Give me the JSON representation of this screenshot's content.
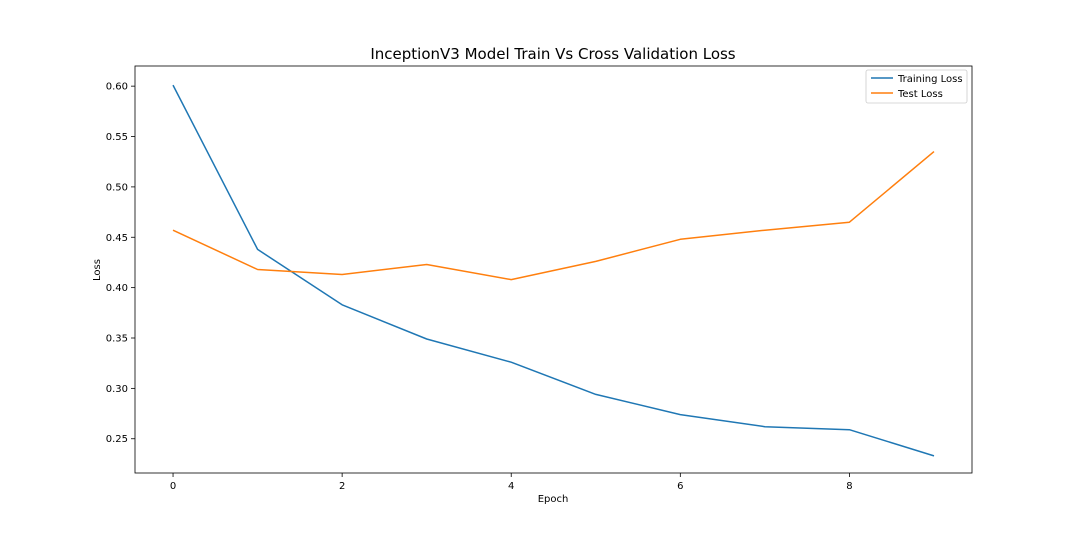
{
  "chart_data": {
    "type": "line",
    "title": "InceptionV3 Model Train Vs Cross Validation Loss",
    "xlabel": "Epoch",
    "ylabel": "Loss",
    "x": [
      0,
      1,
      2,
      3,
      4,
      5,
      6,
      7,
      8,
      9
    ],
    "xlim": [
      -0.45,
      9.45
    ],
    "ylim": [
      0.216,
      0.62
    ],
    "xticks": [
      0,
      2,
      4,
      6,
      8
    ],
    "yticks": [
      0.25,
      0.3,
      0.35,
      0.4,
      0.45,
      0.5,
      0.55,
      0.6
    ],
    "ytick_labels": [
      "0.25",
      "0.30",
      "0.35",
      "0.40",
      "0.45",
      "0.50",
      "0.55",
      "0.60"
    ],
    "grid": false,
    "legend_position": "top-right",
    "series": [
      {
        "name": "Training Loss",
        "color": "#1f77b4",
        "values": [
          0.601,
          0.438,
          0.383,
          0.349,
          0.326,
          0.294,
          0.274,
          0.262,
          0.259,
          0.233
        ]
      },
      {
        "name": "Test Loss",
        "color": "#ff7f0e",
        "values": [
          0.457,
          0.418,
          0.413,
          0.423,
          0.408,
          0.426,
          0.448,
          0.457,
          0.465,
          0.535
        ]
      }
    ]
  }
}
